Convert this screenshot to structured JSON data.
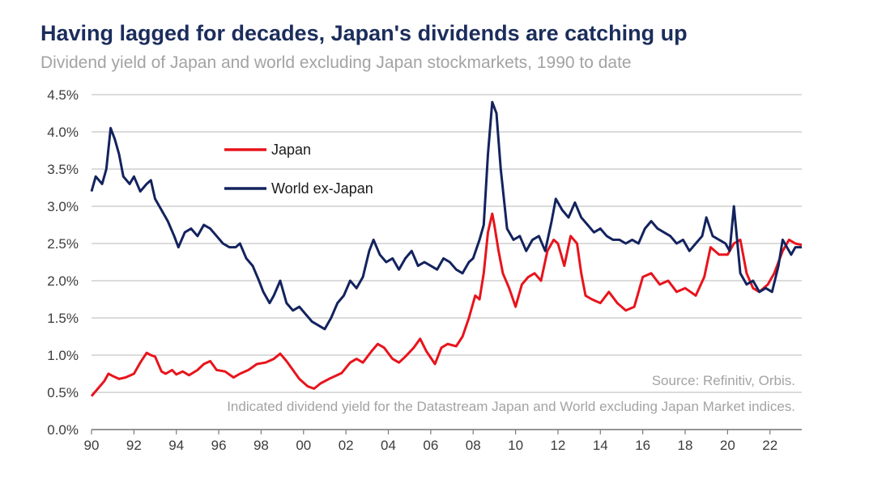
{
  "chart_data": {
    "type": "line",
    "title": "Having lagged for decades, Japan's dividends are catching up",
    "subtitle": "Dividend yield of Japan and world excluding Japan stockmarkets, 1990 to date",
    "xlabel": "",
    "ylabel": "",
    "xlim": [
      1990,
      2023.5
    ],
    "ylim": [
      0,
      4.5
    ],
    "x_ticks": [
      1990,
      1992,
      1994,
      1996,
      1998,
      2000,
      2002,
      2004,
      2006,
      2008,
      2010,
      2012,
      2014,
      2016,
      2018,
      2020,
      2022
    ],
    "x_tick_labels": [
      "90",
      "92",
      "94",
      "96",
      "98",
      "00",
      "02",
      "04",
      "06",
      "08",
      "10",
      "12",
      "14",
      "16",
      "18",
      "20",
      "22"
    ],
    "y_ticks": [
      0,
      0.5,
      1.0,
      1.5,
      2.0,
      2.5,
      3.0,
      3.5,
      4.0,
      4.5
    ],
    "y_tick_labels": [
      "0.0%",
      "0.5%",
      "1.0%",
      "1.5%",
      "2.0%",
      "2.5%",
      "3.0%",
      "3.5%",
      "4.0%",
      "4.5%"
    ],
    "grid": true,
    "legend_position": "top-left",
    "series": [
      {
        "name": "Japan",
        "color": "#e8141c",
        "x": [
          1990.0,
          1990.3,
          1990.6,
          1990.8,
          1991.0,
          1991.3,
          1991.6,
          1992.0,
          1992.3,
          1992.6,
          1992.8,
          1993.0,
          1993.3,
          1993.5,
          1993.8,
          1994.0,
          1994.3,
          1994.6,
          1995.0,
          1995.3,
          1995.6,
          1995.9,
          1996.3,
          1996.7,
          1997.0,
          1997.4,
          1997.8,
          1998.2,
          1998.6,
          1998.9,
          1999.2,
          1999.5,
          1999.8,
          2000.2,
          2000.5,
          2000.8,
          2001.2,
          2001.5,
          2001.8,
          2002.2,
          2002.5,
          2002.8,
          2003.2,
          2003.5,
          2003.8,
          2004.2,
          2004.5,
          2004.8,
          2005.2,
          2005.5,
          2005.8,
          2006.2,
          2006.5,
          2006.8,
          2007.2,
          2007.5,
          2007.8,
          2008.1,
          2008.3,
          2008.5,
          2008.7,
          2008.9,
          2009.0,
          2009.2,
          2009.4,
          2009.7,
          2010.0,
          2010.3,
          2010.6,
          2010.9,
          2011.2,
          2011.5,
          2011.8,
          2012.0,
          2012.3,
          2012.6,
          2012.9,
          2013.1,
          2013.3,
          2013.6,
          2014.0,
          2014.4,
          2014.8,
          2015.2,
          2015.6,
          2016.0,
          2016.4,
          2016.8,
          2017.2,
          2017.6,
          2018.0,
          2018.5,
          2018.9,
          2019.2,
          2019.6,
          2020.0,
          2020.3,
          2020.6,
          2020.9,
          2021.2,
          2021.5,
          2021.9,
          2022.2,
          2022.6,
          2022.9,
          2023.2,
          2023.5
        ],
        "values": [
          0.45,
          0.55,
          0.65,
          0.75,
          0.72,
          0.68,
          0.7,
          0.75,
          0.9,
          1.03,
          1.0,
          0.98,
          0.78,
          0.75,
          0.8,
          0.74,
          0.78,
          0.73,
          0.8,
          0.88,
          0.92,
          0.8,
          0.78,
          0.7,
          0.75,
          0.8,
          0.88,
          0.9,
          0.95,
          1.02,
          0.92,
          0.8,
          0.68,
          0.58,
          0.55,
          0.62,
          0.68,
          0.72,
          0.76,
          0.9,
          0.95,
          0.9,
          1.05,
          1.15,
          1.1,
          0.95,
          0.9,
          0.98,
          1.1,
          1.22,
          1.05,
          0.88,
          1.1,
          1.15,
          1.12,
          1.25,
          1.5,
          1.8,
          1.75,
          2.1,
          2.65,
          2.9,
          2.75,
          2.4,
          2.1,
          1.9,
          1.65,
          1.95,
          2.05,
          2.1,
          2.0,
          2.4,
          2.55,
          2.5,
          2.2,
          2.6,
          2.5,
          2.1,
          1.8,
          1.75,
          1.7,
          1.85,
          1.7,
          1.6,
          1.65,
          2.05,
          2.1,
          1.95,
          2.0,
          1.85,
          1.9,
          1.8,
          2.05,
          2.45,
          2.35,
          2.35,
          2.5,
          2.55,
          2.1,
          1.9,
          1.85,
          1.95,
          2.1,
          2.4,
          2.55,
          2.5,
          2.48
        ]
      },
      {
        "name": "World ex-Japan",
        "color": "#13235e",
        "x": [
          1990.0,
          1990.2,
          1990.5,
          1990.7,
          1990.9,
          1991.1,
          1991.3,
          1991.5,
          1991.8,
          1992.0,
          1992.3,
          1992.6,
          1992.8,
          1993.0,
          1993.3,
          1993.6,
          1993.9,
          1994.1,
          1994.4,
          1994.7,
          1995.0,
          1995.3,
          1995.6,
          1995.9,
          1996.2,
          1996.5,
          1996.8,
          1997.0,
          1997.3,
          1997.6,
          1997.9,
          1998.1,
          1998.4,
          1998.6,
          1998.9,
          1999.2,
          1999.5,
          1999.8,
          2000.1,
          2000.4,
          2000.7,
          2001.0,
          2001.3,
          2001.6,
          2001.9,
          2002.2,
          2002.5,
          2002.8,
          2003.1,
          2003.3,
          2003.6,
          2003.9,
          2004.2,
          2004.5,
          2004.8,
          2005.1,
          2005.4,
          2005.7,
          2006.0,
          2006.3,
          2006.6,
          2006.9,
          2007.2,
          2007.5,
          2007.8,
          2008.0,
          2008.3,
          2008.5,
          2008.7,
          2008.9,
          2009.1,
          2009.3,
          2009.6,
          2009.9,
          2010.2,
          2010.5,
          2010.8,
          2011.1,
          2011.4,
          2011.7,
          2011.9,
          2012.2,
          2012.5,
          2012.8,
          2013.1,
          2013.4,
          2013.7,
          2014.0,
          2014.3,
          2014.6,
          2014.9,
          2015.2,
          2015.5,
          2015.8,
          2016.1,
          2016.4,
          2016.7,
          2017.0,
          2017.3,
          2017.6,
          2017.9,
          2018.2,
          2018.5,
          2018.8,
          2019.0,
          2019.3,
          2019.6,
          2019.9,
          2020.1,
          2020.3,
          2020.6,
          2020.9,
          2021.2,
          2021.5,
          2021.8,
          2022.1,
          2022.4,
          2022.6,
          2022.8,
          2023.0,
          2023.2,
          2023.5
        ],
        "values": [
          3.2,
          3.4,
          3.3,
          3.5,
          4.05,
          3.9,
          3.7,
          3.4,
          3.3,
          3.4,
          3.2,
          3.3,
          3.35,
          3.1,
          2.95,
          2.8,
          2.6,
          2.45,
          2.65,
          2.7,
          2.6,
          2.75,
          2.7,
          2.6,
          2.5,
          2.45,
          2.45,
          2.5,
          2.3,
          2.2,
          2.0,
          1.85,
          1.7,
          1.8,
          2.0,
          1.7,
          1.6,
          1.65,
          1.55,
          1.45,
          1.4,
          1.35,
          1.5,
          1.7,
          1.8,
          2.0,
          1.9,
          2.05,
          2.4,
          2.55,
          2.35,
          2.25,
          2.3,
          2.15,
          2.3,
          2.4,
          2.2,
          2.25,
          2.2,
          2.15,
          2.3,
          2.25,
          2.15,
          2.1,
          2.25,
          2.3,
          2.55,
          2.75,
          3.7,
          4.4,
          4.25,
          3.5,
          2.7,
          2.55,
          2.6,
          2.4,
          2.55,
          2.6,
          2.4,
          2.8,
          3.1,
          2.95,
          2.85,
          3.05,
          2.85,
          2.75,
          2.65,
          2.7,
          2.6,
          2.55,
          2.55,
          2.5,
          2.55,
          2.5,
          2.7,
          2.8,
          2.7,
          2.65,
          2.6,
          2.5,
          2.55,
          2.4,
          2.5,
          2.6,
          2.85,
          2.6,
          2.55,
          2.5,
          2.4,
          3.0,
          2.1,
          1.95,
          2.0,
          1.85,
          1.9,
          1.85,
          2.2,
          2.55,
          2.45,
          2.35,
          2.45,
          2.45
        ]
      }
    ],
    "annotations": [
      "Source: Refinitiv, Orbis.",
      "Indicated dividend yield for the Datastream Japan and World excluding Japan Market indices."
    ]
  }
}
